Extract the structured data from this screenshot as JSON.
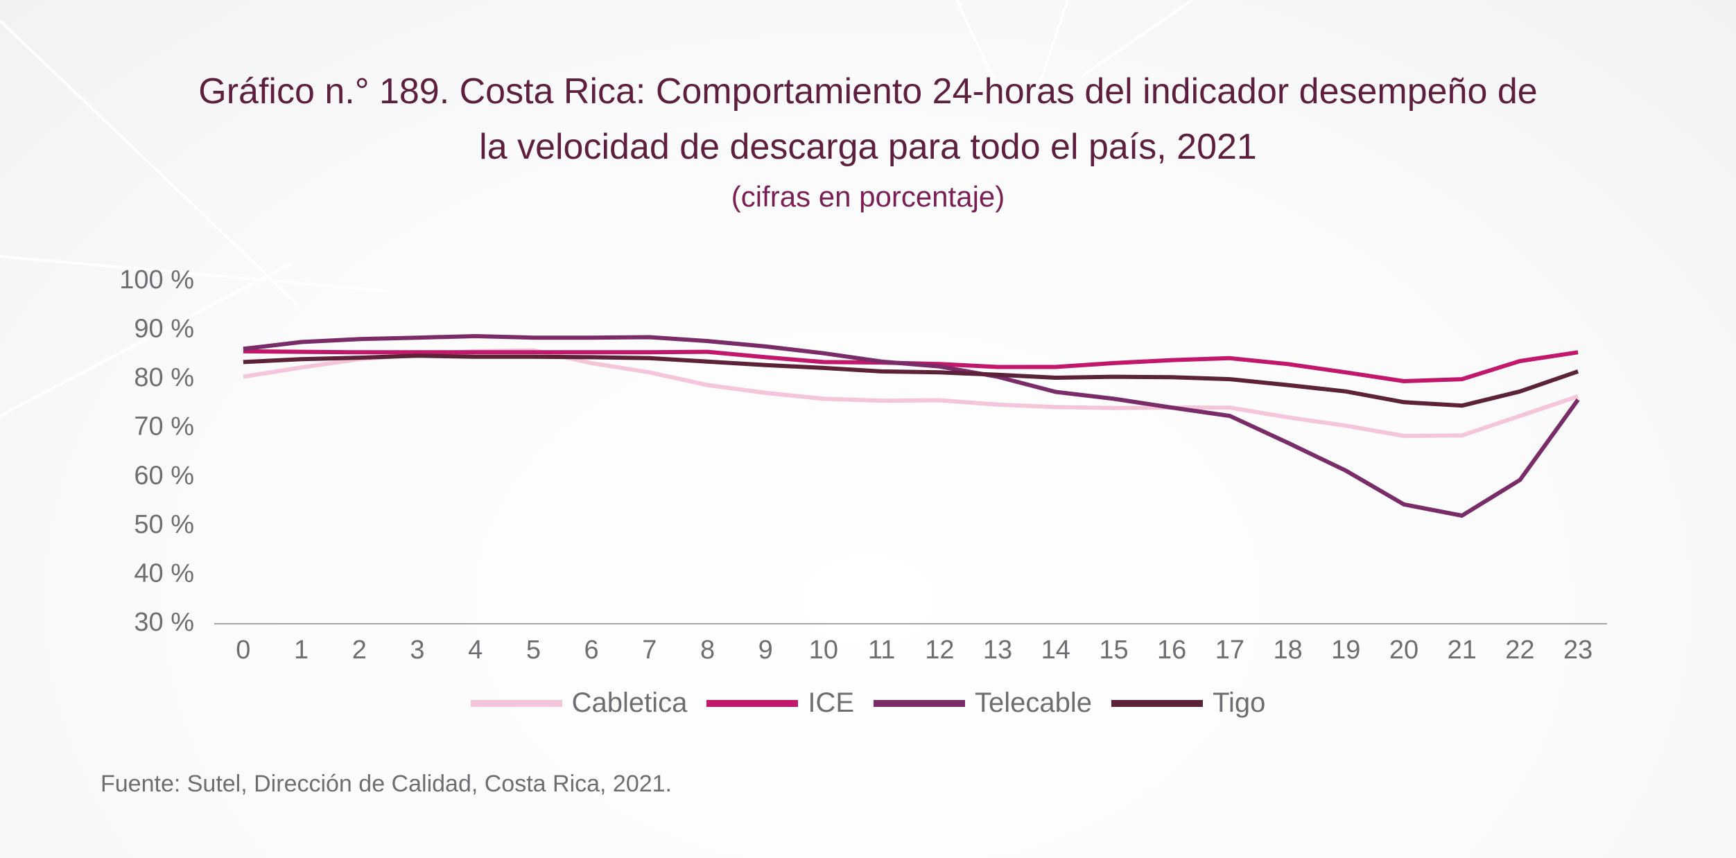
{
  "header": {
    "title_line1": "Gráfico n.° 189. Costa Rica: Comportamiento 24-horas del indicador desempeño de",
    "title_line2": "la velocidad de descarga para todo el país, 2021",
    "subtitle": "(cifras en porcentaje)"
  },
  "footer": {
    "source": "Fuente: Sutel, Dirección de Calidad, Costa Rica, 2021."
  },
  "chart_data": {
    "type": "line",
    "title": "Gráfico n.° 189. Costa Rica: Comportamiento 24-horas del indicador desempeño de la velocidad de descarga para todo el país, 2021",
    "subtitle": "(cifras en porcentaje)",
    "xlabel": "",
    "ylabel": "",
    "x": [
      0,
      1,
      2,
      3,
      4,
      5,
      6,
      7,
      8,
      9,
      10,
      11,
      12,
      13,
      14,
      15,
      16,
      17,
      18,
      19,
      20,
      21,
      22,
      23
    ],
    "x_tick_labels": [
      "0",
      "1",
      "2",
      "3",
      "4",
      "5",
      "6",
      "7",
      "8",
      "9",
      "10",
      "11",
      "12",
      "13",
      "14",
      "15",
      "16",
      "17",
      "18",
      "19",
      "20",
      "21",
      "22",
      "23"
    ],
    "ylim": [
      30,
      100
    ],
    "y_ticks": [
      30,
      40,
      50,
      60,
      70,
      80,
      90,
      100
    ],
    "y_tick_labels": [
      "30 %",
      "40 %",
      "50 %",
      "60 %",
      "70 %",
      "80 %",
      "90 %",
      "100 %"
    ],
    "grid": false,
    "legend_position": "bottom",
    "series": [
      {
        "name": "Cabletica",
        "color": "#f5c6da",
        "values": [
          80.5,
          82.4,
          84.1,
          85.0,
          85.7,
          85.9,
          83.3,
          81.4,
          78.8,
          77.2,
          76.0,
          75.6,
          75.7,
          74.8,
          74.3,
          74.1,
          74.2,
          74.2,
          72.2,
          70.5,
          68.4,
          68.5,
          72.5,
          76.5
        ]
      },
      {
        "name": "ICE",
        "color": "#c2186b",
        "values": [
          85.7,
          85.6,
          85.5,
          85.5,
          85.5,
          85.5,
          85.5,
          85.5,
          85.6,
          84.5,
          83.5,
          83.4,
          83.1,
          82.5,
          82.5,
          83.3,
          83.9,
          84.3,
          83.1,
          81.4,
          79.6,
          80.0,
          83.7,
          85.5
        ]
      },
      {
        "name": "Telecable",
        "color": "#7a2c68",
        "values": [
          86.2,
          87.6,
          88.2,
          88.5,
          88.8,
          88.5,
          88.5,
          88.6,
          87.8,
          86.7,
          85.3,
          83.6,
          82.6,
          80.5,
          77.4,
          76.0,
          74.2,
          72.5,
          67.0,
          61.3,
          54.4,
          52.1,
          59.4,
          75.8
        ]
      },
      {
        "name": "Tigo",
        "color": "#5c2238",
        "values": [
          83.5,
          84.1,
          84.4,
          84.8,
          84.6,
          84.6,
          84.5,
          84.3,
          83.6,
          82.9,
          82.3,
          81.6,
          81.4,
          80.9,
          80.3,
          80.5,
          80.4,
          80.0,
          78.8,
          77.5,
          75.3,
          74.6,
          77.5,
          81.6
        ]
      }
    ]
  }
}
